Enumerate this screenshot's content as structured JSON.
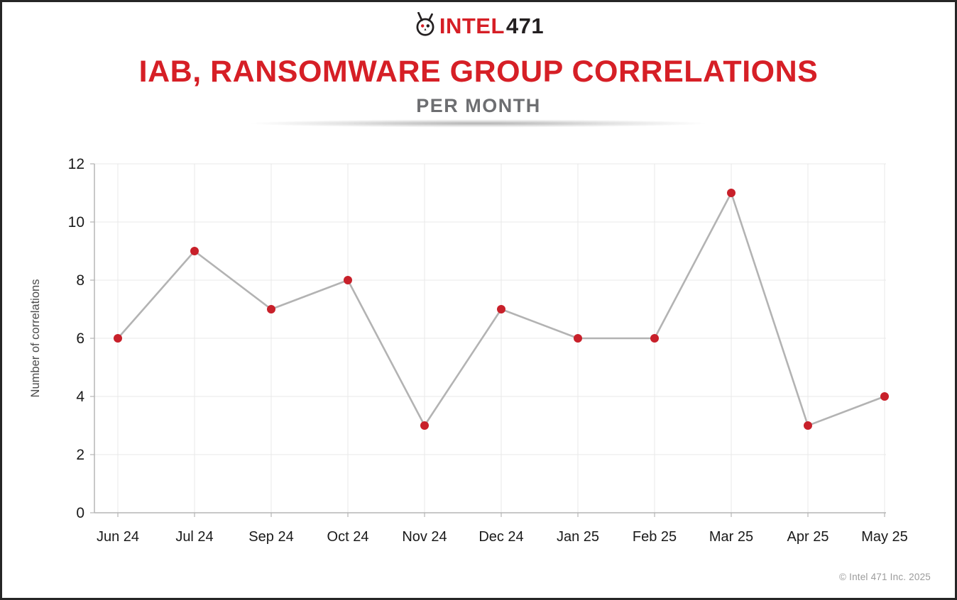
{
  "logo": {
    "intel": "INTEL",
    "num": "471"
  },
  "header": {
    "title": "IAB, RANSOMWARE GROUP CORRELATIONS",
    "subtitle": "PER MONTH"
  },
  "footer": {
    "copyright": "© Intel 471 Inc. 2025"
  },
  "colors": {
    "accent_red": "#d61f26",
    "marker_red": "#c8202a",
    "line_gray": "#b3b3b3",
    "grid_gray": "#e8e8e8",
    "axis_gray": "#b5b5b5",
    "tick_text": "#1a1a1a",
    "ylabel_text": "#4a4a4a"
  },
  "chart_data": {
    "type": "line",
    "title": "IAB, RANSOMWARE GROUP CORRELATIONS PER MONTH",
    "xlabel": "",
    "ylabel": "Number of correlations",
    "categories": [
      "Jun 24",
      "Jul 24",
      "Sep 24",
      "Oct 24",
      "Nov 24",
      "Dec 24",
      "Jan 25",
      "Feb 25",
      "Mar 25",
      "Apr 25",
      "May 25"
    ],
    "values": [
      6,
      9,
      7,
      8,
      3,
      7,
      6,
      6,
      11,
      3,
      4
    ],
    "ylim": [
      0,
      12
    ],
    "ytick_step": 2,
    "grid": true,
    "legend": false,
    "series_name": "IAB, ransomware group correlations per month"
  }
}
